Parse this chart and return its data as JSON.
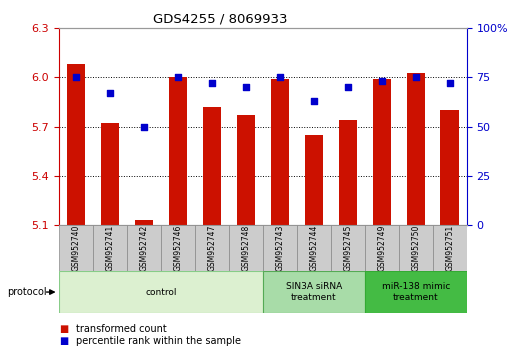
{
  "title": "GDS4255 / 8069933",
  "samples": [
    "GSM952740",
    "GSM952741",
    "GSM952742",
    "GSM952746",
    "GSM952747",
    "GSM952748",
    "GSM952743",
    "GSM952744",
    "GSM952745",
    "GSM952749",
    "GSM952750",
    "GSM952751"
  ],
  "transformed_count": [
    6.08,
    5.72,
    5.13,
    6.0,
    5.82,
    5.77,
    5.99,
    5.65,
    5.74,
    5.99,
    6.03,
    5.8
  ],
  "percentile_rank": [
    75,
    67,
    50,
    75,
    72,
    70,
    75,
    63,
    70,
    73,
    75,
    72
  ],
  "ylim_left": [
    5.1,
    6.3
  ],
  "ylim_right": [
    0,
    100
  ],
  "yticks_left": [
    5.1,
    5.4,
    5.7,
    6.0,
    6.3
  ],
  "yticks_right": [
    0,
    25,
    50,
    75,
    100
  ],
  "bar_color": "#cc1100",
  "dot_color": "#0000cc",
  "bar_bottom": 5.1,
  "groups": [
    {
      "label": "control",
      "start": 0,
      "end": 6,
      "color": "#dcf0d0",
      "border": "#88cc88"
    },
    {
      "label": "SIN3A siRNA\ntreatment",
      "start": 6,
      "end": 9,
      "color": "#a8dca8",
      "border": "#55aa55"
    },
    {
      "label": "miR-138 mimic\ntreatment",
      "start": 9,
      "end": 12,
      "color": "#44bb44",
      "border": "#33aa33"
    }
  ],
  "protocol_label": "protocol",
  "legend_transformed": "transformed count",
  "legend_percentile": "percentile rank within the sample",
  "tick_label_color_left": "#cc0000",
  "tick_label_color_right": "#0000cc",
  "sample_box_color": "#cccccc",
  "sample_box_border": "#888888"
}
